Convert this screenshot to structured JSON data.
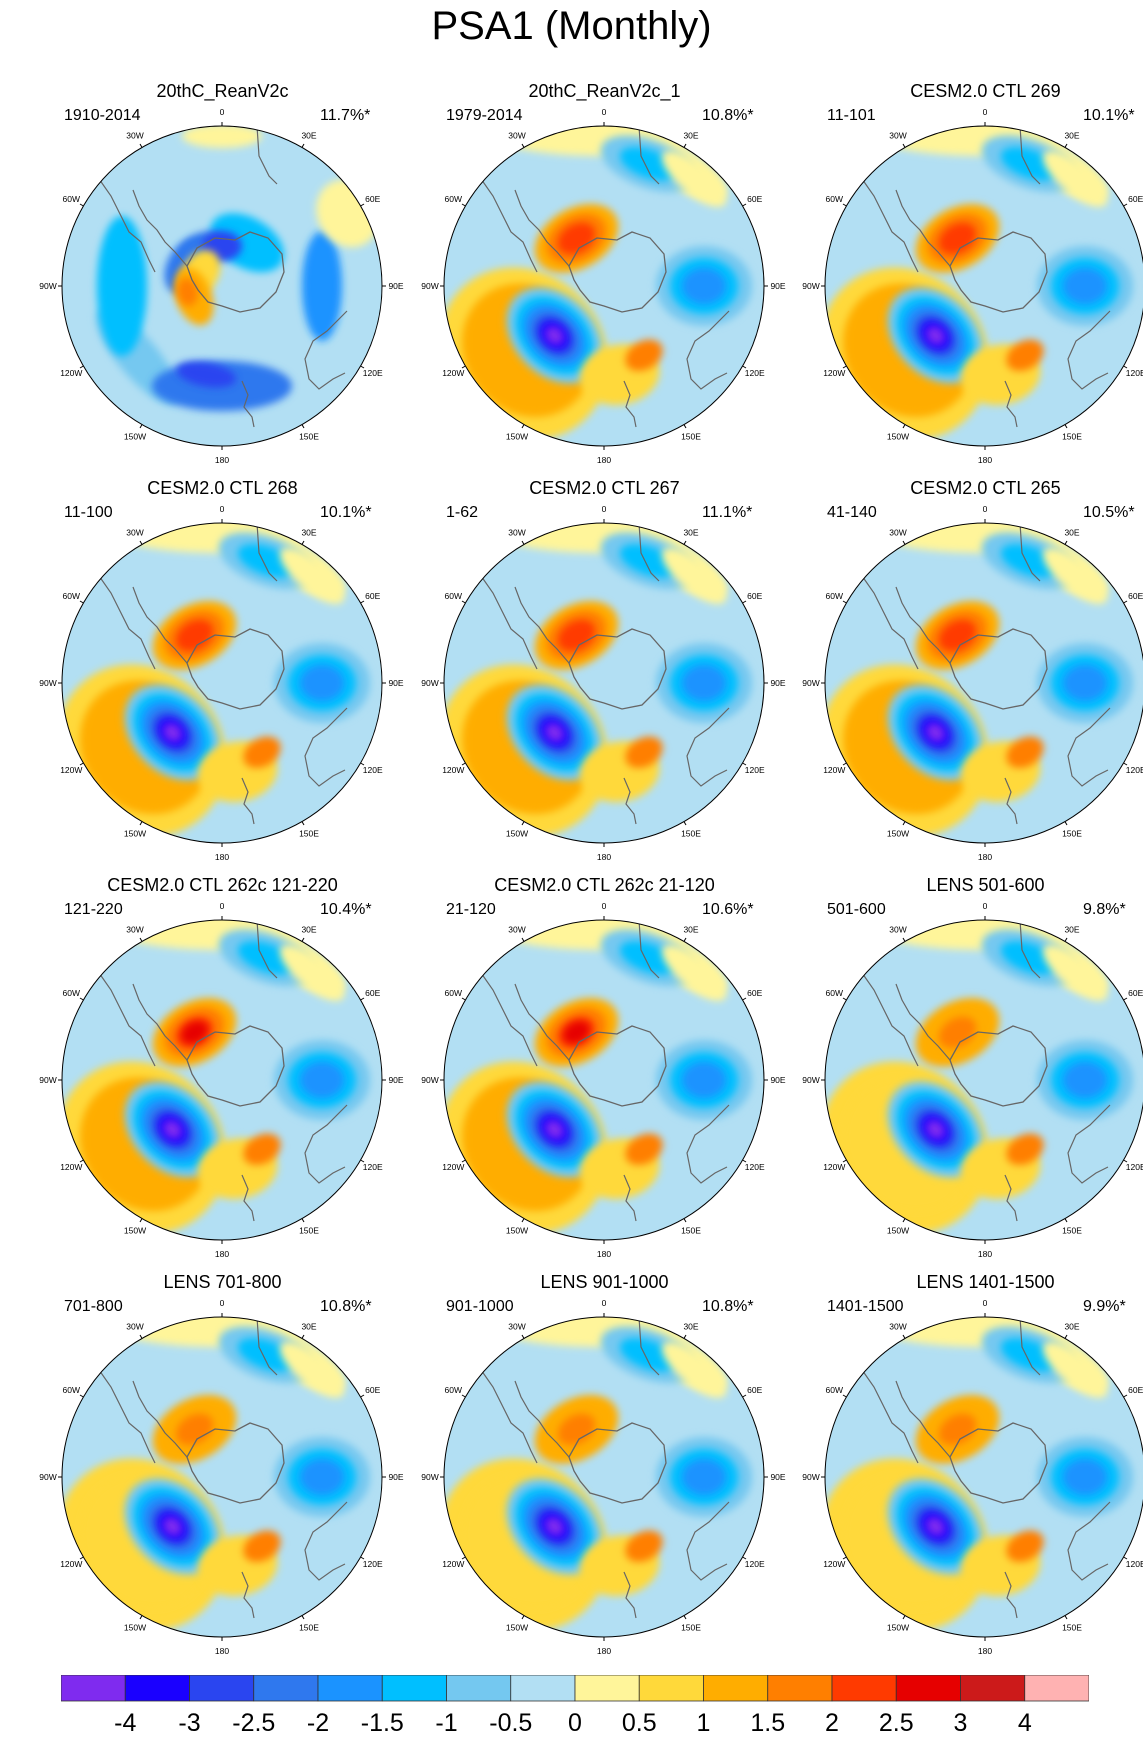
{
  "title": "PSA1 (Monthly)",
  "longitude_labels": [
    "0",
    "30E",
    "60E",
    "90E",
    "120E",
    "150E",
    "180",
    "150W",
    "120W",
    "90W",
    "60W",
    "30W"
  ],
  "panels": [
    {
      "name": "20thC_ReanV2c",
      "period": "1910-2014",
      "variance": "11.7%*"
    },
    {
      "name": "20thC_ReanV2c_1",
      "period": "1979-2014",
      "variance": "10.8%*"
    },
    {
      "name": "CESM2.0 CTL 269",
      "period": "11-101",
      "variance": "10.1%*"
    },
    {
      "name": "CESM2.0 CTL 268",
      "period": "11-100",
      "variance": "10.1%*"
    },
    {
      "name": "CESM2.0 CTL 267",
      "period": "1-62",
      "variance": "11.1%*"
    },
    {
      "name": "CESM2.0 CTL 265",
      "period": "41-140",
      "variance": "10.5%*"
    },
    {
      "name": "CESM2.0 CTL 262c 121-220",
      "period": "121-220",
      "variance": "10.4%*"
    },
    {
      "name": "CESM2.0 CTL 262c 21-120",
      "period": "21-120",
      "variance": "10.6%*"
    },
    {
      "name": "LENS 501-600",
      "period": "501-600",
      "variance": "9.8%*"
    },
    {
      "name": "LENS 701-800",
      "period": "701-800",
      "variance": "10.8%*"
    },
    {
      "name": "LENS 901-1000",
      "period": "901-1000",
      "variance": "10.8%*"
    },
    {
      "name": "LENS 1401-1500",
      "period": "1401-1500",
      "variance": "9.9%*"
    }
  ],
  "colorbar": {
    "colors": [
      "#7f2bef",
      "#1a00ff",
      "#2a45f0",
      "#2f78ee",
      "#1b93ff",
      "#00bfff",
      "#74c8f0",
      "#b2dff3",
      "#fff59a",
      "#ffd93a",
      "#ffad00",
      "#ff7f00",
      "#ff3a00",
      "#e60000",
      "#cc1a1a",
      "#ffb2b2"
    ],
    "tick_labels": [
      "-4",
      "-3",
      "-2.5",
      "-2",
      "-1.5",
      "-1",
      "-0.5",
      "0",
      "0.5",
      "1",
      "1.5",
      "2",
      "2.5",
      "3",
      "4"
    ]
  }
}
